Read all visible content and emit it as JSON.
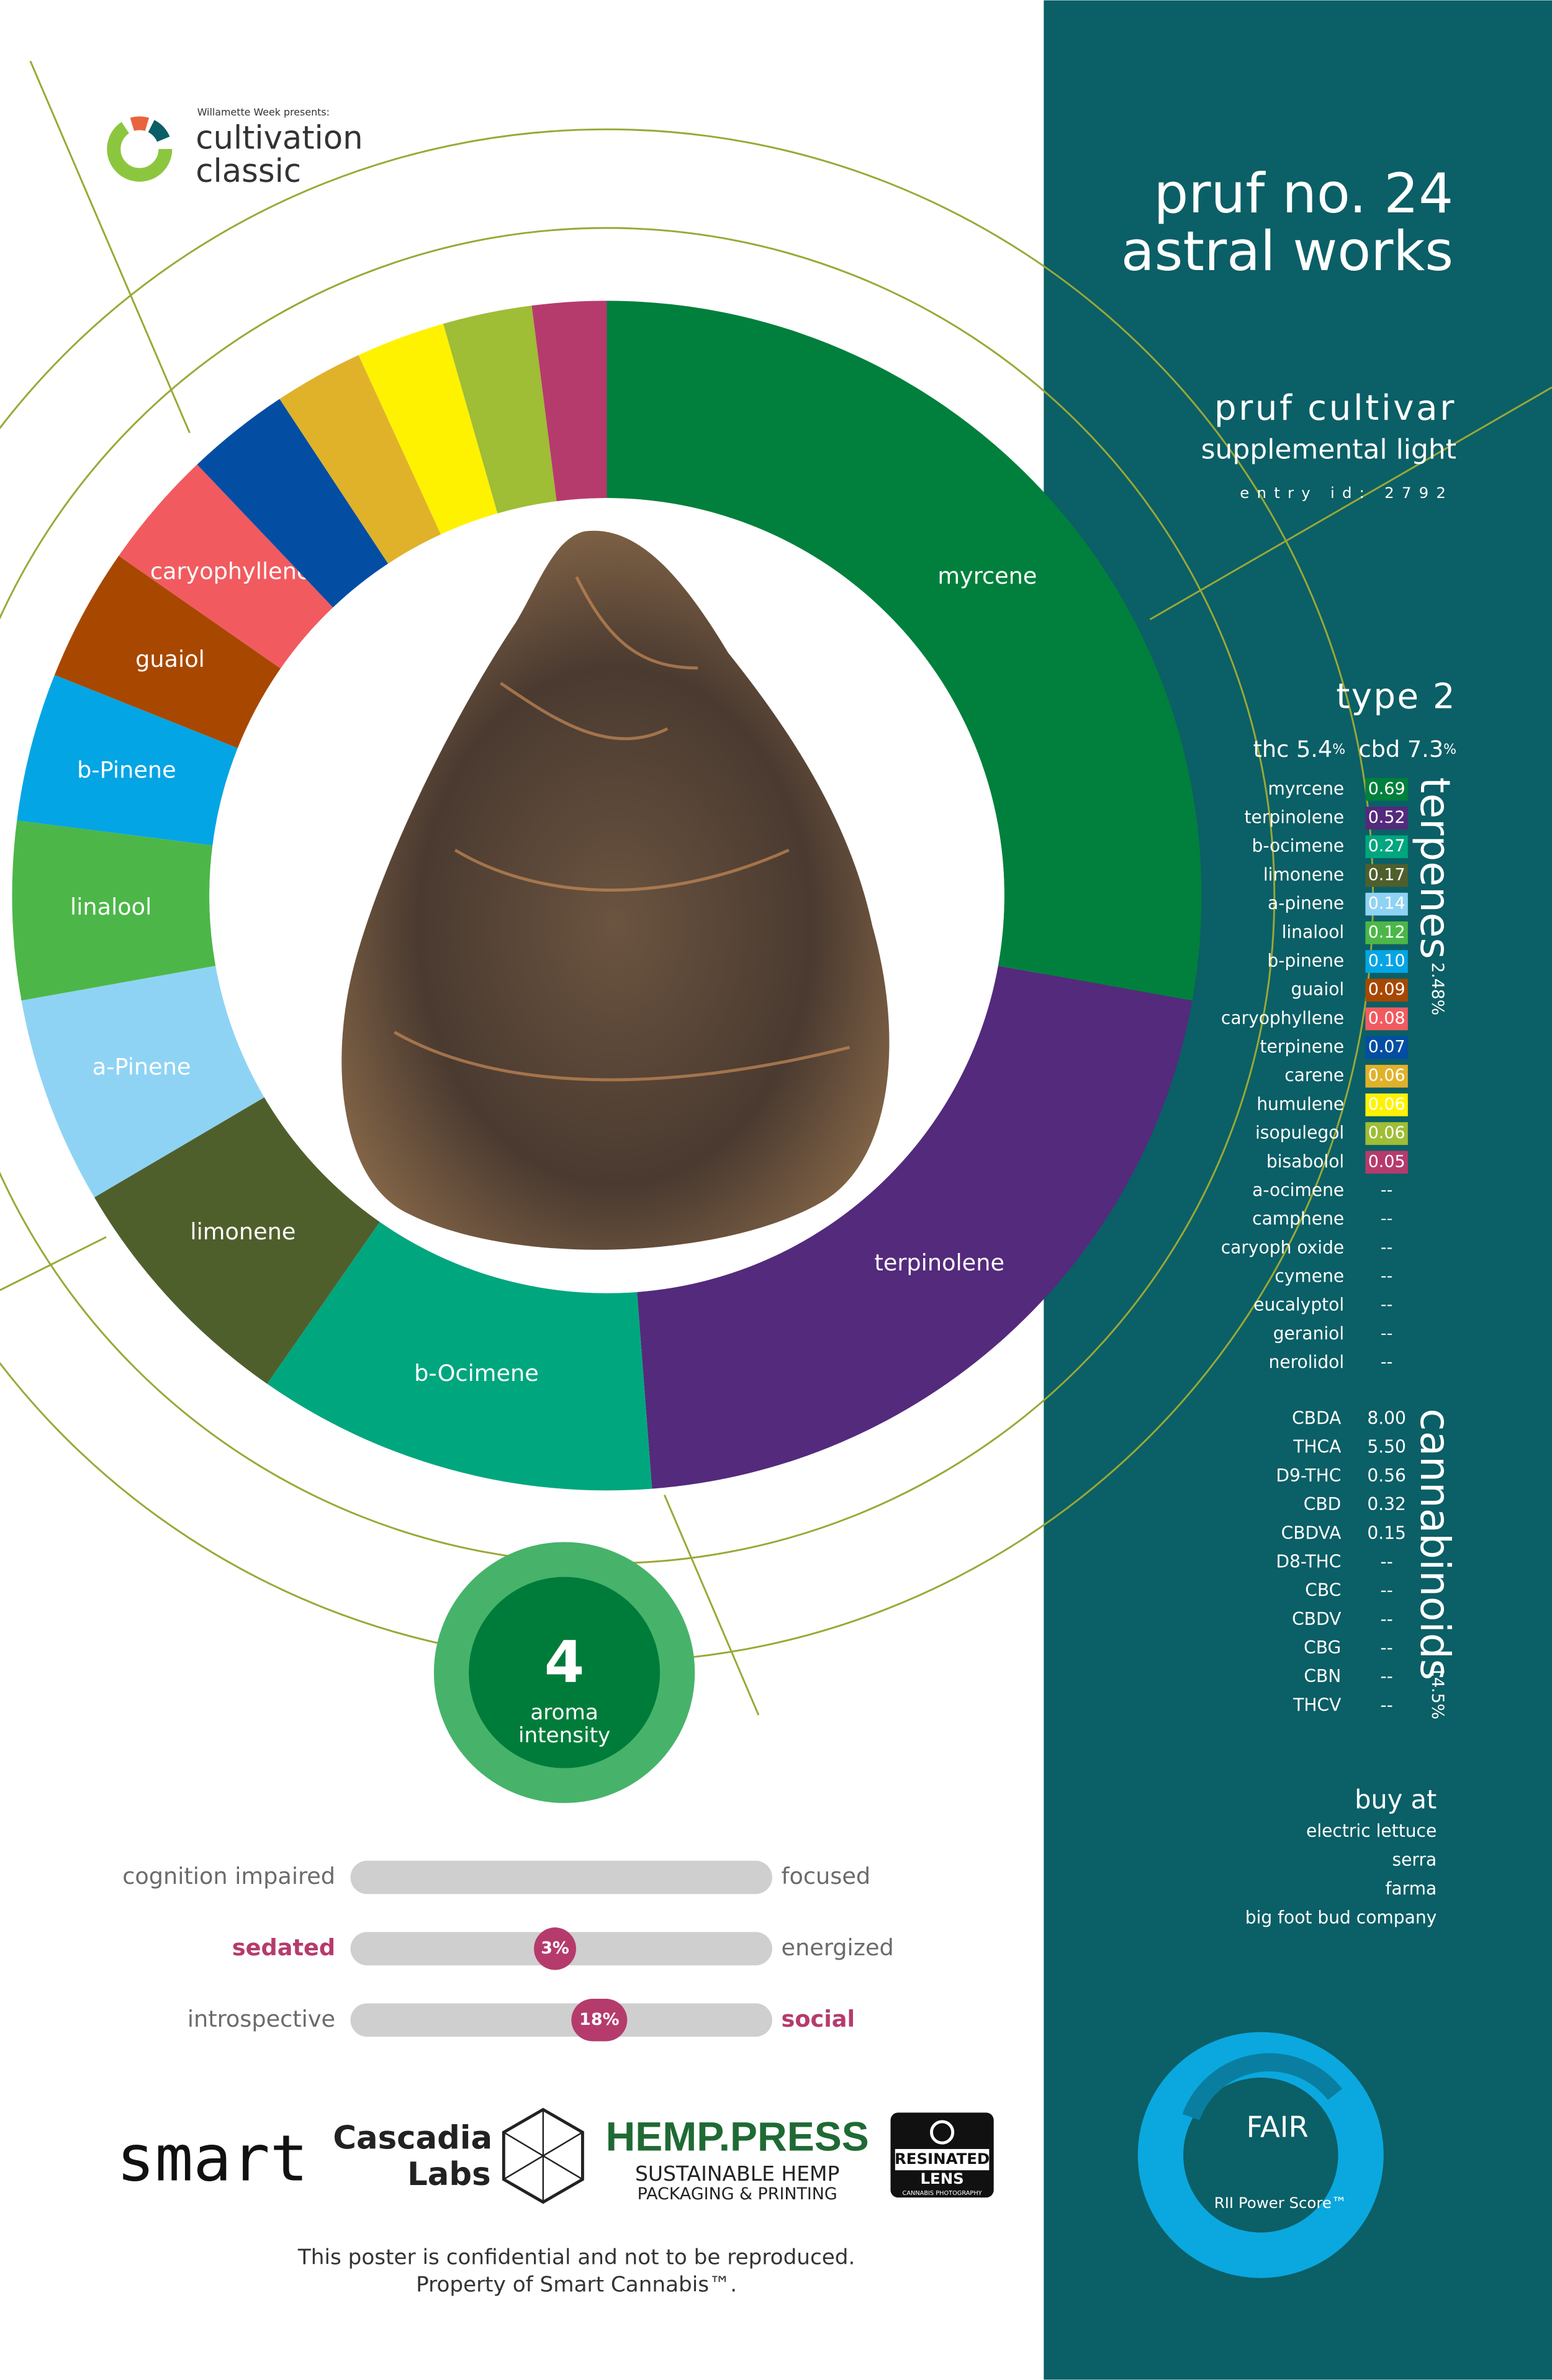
{
  "header": {
    "presenter": "Willamette Week presents:",
    "brand_line1": "cultivation",
    "brand_line2": "classic"
  },
  "title": {
    "line1": "pruf no. 24",
    "line2": "astral works"
  },
  "producer": {
    "name": "pruf cultivar",
    "category": "supplemental light",
    "entry_id": "entry id: 2792"
  },
  "strain_type": "type 2",
  "potency": {
    "thc_label": "thc",
    "thc": "5.4",
    "thc_unit": "%",
    "cbd_label": "cbd",
    "cbd": "7.3",
    "cbd_unit": "%"
  },
  "terpenes": {
    "title": "terpenes",
    "total": "2.48%",
    "rows": [
      {
        "name": "myrcene",
        "value": 0.69,
        "label": "0.69",
        "color": "#00803c"
      },
      {
        "name": "terpinolene",
        "value": 0.52,
        "label": "0.52",
        "color": "#542a7c"
      },
      {
        "name": "b-ocimene",
        "value": 0.27,
        "label": "0.27",
        "color": "#00a67e"
      },
      {
        "name": "limonene",
        "value": 0.17,
        "label": "0.17",
        "color": "#4f5f2c"
      },
      {
        "name": "a-pinene",
        "value": 0.14,
        "label": "0.14",
        "color": "#8fd3f4"
      },
      {
        "name": "linalool",
        "value": 0.12,
        "label": "0.12",
        "color": "#4cb748"
      },
      {
        "name": "b-pinene",
        "value": 0.1,
        "label": "0.10",
        "color": "#04a5e4"
      },
      {
        "name": "guaiol",
        "value": 0.09,
        "label": "0.09",
        "color": "#a84800"
      },
      {
        "name": "caryophyllene",
        "value": 0.08,
        "label": "0.08",
        "color": "#f15b5f"
      },
      {
        "name": "terpinene",
        "value": 0.07,
        "label": "0.07",
        "color": "#034ea2"
      },
      {
        "name": "carene",
        "value": 0.06,
        "label": "0.06",
        "color": "#e0b22a"
      },
      {
        "name": "humulene",
        "value": 0.06,
        "label": "0.06",
        "color": "#fff200"
      },
      {
        "name": "isopulegol",
        "value": 0.06,
        "label": "0.06",
        "color": "#9fbd35"
      },
      {
        "name": "bisabolol",
        "value": 0.05,
        "label": "0.05",
        "color": "#b53b6d"
      },
      {
        "name": "a-ocimene",
        "label": "--"
      },
      {
        "name": "camphene",
        "label": "--"
      },
      {
        "name": "caryoph oxide",
        "label": "--"
      },
      {
        "name": "cymene",
        "label": "--"
      },
      {
        "name": "eucalyptol",
        "label": "--"
      },
      {
        "name": "geraniol",
        "label": "--"
      },
      {
        "name": "nerolidol",
        "label": "--"
      }
    ]
  },
  "donut_labels": [
    "myrcene",
    "terpinolene",
    "b-Ocimene",
    "limonene",
    "a-Pinene",
    "linalool",
    "b-Pinene",
    "guaiol",
    "caryophyllene"
  ],
  "cannabinoids": {
    "title": "cannabinoids",
    "total": "14.5%",
    "rows": [
      {
        "name": "CBDA",
        "label": "8.00"
      },
      {
        "name": "THCA",
        "label": "5.50"
      },
      {
        "name": "D9-THC",
        "label": "0.56"
      },
      {
        "name": "CBD",
        "label": "0.32"
      },
      {
        "name": "CBDVA",
        "label": "0.15"
      },
      {
        "name": "D8-THC",
        "label": "--"
      },
      {
        "name": "CBC",
        "label": "--"
      },
      {
        "name": "CBDV",
        "label": "--"
      },
      {
        "name": "CBG",
        "label": "--"
      },
      {
        "name": "CBN",
        "label": "--"
      },
      {
        "name": "THCV",
        "label": "--"
      }
    ]
  },
  "aroma": {
    "value": "4",
    "line1": "aroma",
    "line2": "intensity"
  },
  "effects": [
    {
      "left": "cognition impaired",
      "right": "focused"
    },
    {
      "left": "sedated",
      "right": "energized",
      "value": 3,
      "label": "3%",
      "emphasis": "left"
    },
    {
      "left": "introspective",
      "right": "social",
      "value": 18,
      "label": "18%",
      "emphasis": "right"
    }
  ],
  "buy": {
    "title": "buy at",
    "shops": [
      "electric lettuce",
      "serra",
      "farma",
      "big foot bud company"
    ]
  },
  "score": {
    "rating": "FAIR",
    "label": "RII Power Score™"
  },
  "sponsors": {
    "smart": "smart",
    "cascadia_1": "Cascadia",
    "cascadia_2": "Labs",
    "hemp_1": "HEMP.PRESS",
    "hemp_2": "SUSTAINABLE HEMP",
    "hemp_3": "PACKAGING & PRINTING",
    "lens_1": "RESINATED",
    "lens_2": "LENS",
    "lens_3": "CANNABIS PHOTOGRAPHY"
  },
  "footer": [
    "This poster is confidential and not to be reproduced.",
    "Property of Smart Cannabis™."
  ]
}
